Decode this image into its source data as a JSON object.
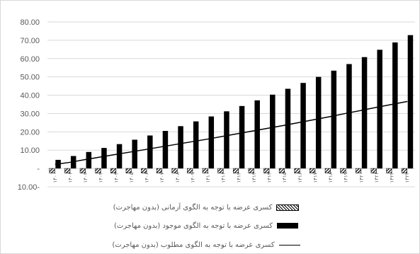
{
  "chart_data": {
    "type": "bar",
    "y_tick_labels": [
      "80.00",
      "70.00",
      "60.00",
      "50.00",
      "40.00",
      "30.00",
      "20.00",
      "10.00",
      "-",
      "10.00-"
    ],
    "ylim": [
      -10,
      80
    ],
    "grid": true,
    "legend_position": "bottom",
    "categories": [
      "۱۴۰۰",
      "۱۴۰۱",
      "۱۴۰۲",
      "۱۴۰۳",
      "۱۴۰۴",
      "۱۴۰۵",
      "۱۴۰۶",
      "۱۴۰۷",
      "۱۴۰۸",
      "۱۴۰۹",
      "۱۴۱۰",
      "۱۴۱۱",
      "۱۴۱۲",
      "۱۴۱۳",
      "۱۴۱۴",
      "۱۴۱۵",
      "۱۴۱۶",
      "۱۴۱۷",
      "۱۴۱۸",
      "۱۴۱۹",
      "۱۴۲۰",
      "۱۴۲۱",
      "۱۴۲۲",
      "۱۴۲۳"
    ],
    "series": [
      {
        "name": "کسری عرضه با توجه به الگوی آرمانی (بدون مهاجرت)",
        "kind": "hatched-bar",
        "values": [
          -2.5,
          -2.5,
          -2.5,
          -2.5,
          -2.5,
          -2.5,
          -2.5,
          -2.5,
          -2.5,
          -2.5,
          -2.5,
          -2.5,
          -2.5,
          -2.5,
          -2.5,
          -2.5,
          -2.5,
          -2.5,
          -2.5,
          -2.5,
          -2.5,
          -2.5,
          -2.5,
          -2.5
        ]
      },
      {
        "name": "کسری عرضه با توجه به الگوی موجود (بدون مهاجرت)",
        "kind": "solid-bar",
        "values": [
          4.7,
          6.8,
          9.0,
          11.2,
          13.3,
          15.7,
          18.0,
          20.5,
          23.1,
          25.7,
          28.4,
          31.2,
          34.1,
          37.2,
          40.3,
          43.5,
          46.7,
          50.0,
          53.4,
          57.0,
          60.8,
          64.8,
          68.8,
          72.8
        ]
      },
      {
        "name": "کسری عرضه با توجه به الگوی مطلوب (بدون مهاجرت)",
        "kind": "line",
        "values": [
          2.2,
          3.4,
          4.9,
          6.3,
          7.7,
          9.1,
          10.5,
          11.9,
          13.3,
          14.7,
          16.1,
          17.6,
          19.1,
          20.6,
          22.1,
          23.6,
          25.2,
          26.8,
          28.4,
          30.1,
          31.7,
          33.4,
          35.0,
          36.6
        ]
      }
    ]
  },
  "colors": {
    "bar": "#000000",
    "grid": "#d9d9d9",
    "axis_text": "#595959"
  }
}
